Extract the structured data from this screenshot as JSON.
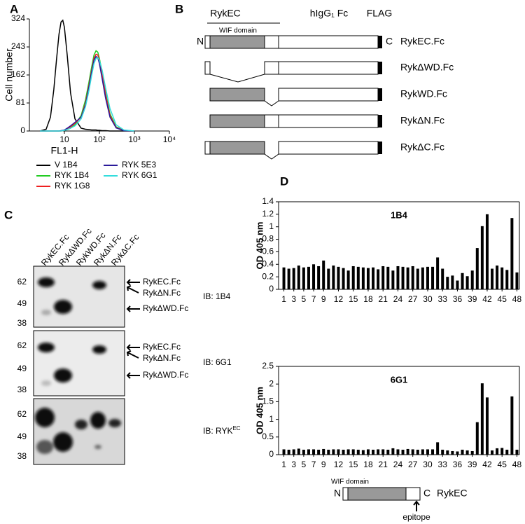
{
  "panels": [
    "A",
    "B",
    "C",
    "D"
  ],
  "chart_data": [
    {
      "type": "line",
      "ylabel": "Cell number",
      "xlabel": "FL1-H",
      "xscale": "log",
      "xlim": [
        1,
        10000
      ],
      "xticks": [
        10,
        {
          "value": 100,
          "label": "10²"
        },
        {
          "value": 1000,
          "label": "10³"
        },
        {
          "value": 10000,
          "label": "10⁴"
        }
      ],
      "ylim": [
        0,
        324
      ],
      "yticks": [
        0,
        81,
        162,
        243,
        324
      ],
      "x": [
        2,
        3,
        4,
        5,
        6,
        7,
        8,
        9,
        10,
        12,
        15,
        20,
        30,
        40,
        50,
        60,
        70,
        80,
        90,
        100,
        120,
        150,
        200,
        300,
        500,
        1000
      ],
      "series": [
        {
          "name": "V 1B4",
          "color": "#000000",
          "values": [
            0,
            5,
            40,
            120,
            210,
            280,
            315,
            320,
            300,
            220,
            110,
            35,
            8,
            5,
            4,
            3,
            3,
            3,
            2,
            2,
            1,
            1,
            0,
            0,
            0,
            0
          ]
        },
        {
          "name": "RYK 1B4",
          "color": "#22cc22",
          "values": [
            0,
            0,
            0,
            0,
            0,
            0,
            0,
            1,
            2,
            4,
            8,
            18,
            45,
            90,
            140,
            185,
            220,
            232,
            228,
            210,
            170,
            110,
            50,
            12,
            2,
            0
          ]
        },
        {
          "name": "RYK 1G8",
          "color": "#ee2020",
          "values": [
            0,
            0,
            0,
            0,
            0,
            0,
            0,
            1,
            2,
            5,
            12,
            22,
            40,
            80,
            130,
            175,
            210,
            222,
            220,
            205,
            165,
            105,
            45,
            10,
            2,
            0
          ]
        },
        {
          "name": "RYK 5E3",
          "color": "#2a1a9a",
          "values": [
            0,
            0,
            0,
            0,
            0,
            0,
            1,
            2,
            3,
            8,
            15,
            25,
            40,
            75,
            125,
            170,
            205,
            215,
            212,
            195,
            150,
            95,
            40,
            9,
            1,
            0
          ]
        },
        {
          "name": "RYK 6G1",
          "color": "#33dddd",
          "values": [
            0,
            0,
            0,
            0,
            0,
            0,
            0,
            1,
            2,
            4,
            8,
            15,
            35,
            70,
            115,
            160,
            195,
            210,
            212,
            205,
            175,
            125,
            65,
            18,
            3,
            0
          ]
        }
      ]
    },
    {
      "type": "bar",
      "title": "1B4",
      "ylabel": "OD 405 nm",
      "color": "#000000",
      "ylim": [
        0,
        1.4
      ],
      "yticks": [
        0,
        0.2,
        0.4,
        0.6,
        0.8,
        1,
        1.2,
        1.4
      ],
      "categories": [
        "1",
        null,
        "3",
        null,
        "5",
        null,
        "7",
        null,
        "9",
        null,
        null,
        "12",
        null,
        null,
        "15",
        null,
        null,
        "18",
        null,
        null,
        "21",
        null,
        null,
        "24",
        null,
        null,
        "27",
        null,
        null,
        "30",
        null,
        null,
        "33",
        null,
        null,
        "36",
        null,
        null,
        "39",
        null,
        null,
        "42",
        null,
        null,
        "45",
        null,
        null,
        "48"
      ],
      "values": [
        0.35,
        0.33,
        0.34,
        0.38,
        0.35,
        0.36,
        0.4,
        0.37,
        0.46,
        0.33,
        0.38,
        0.36,
        0.34,
        0.3,
        0.37,
        0.36,
        0.35,
        0.34,
        0.35,
        0.32,
        0.37,
        0.36,
        0.3,
        0.37,
        0.36,
        0.35,
        0.37,
        0.33,
        0.35,
        0.36,
        0.36,
        0.51,
        0.33,
        0.2,
        0.22,
        0.14,
        0.26,
        0.21,
        0.3,
        0.66,
        1.01,
        1.2,
        0.33,
        0.38,
        0.35,
        0.31,
        1.14,
        0.27
      ]
    },
    {
      "type": "bar",
      "title": "6G1",
      "ylabel": "OD 405 nm",
      "color": "#000000",
      "ylim": [
        0,
        2.5
      ],
      "yticks": [
        0,
        0.5,
        1,
        1.5,
        2,
        2.5
      ],
      "categories": [
        "1",
        null,
        "3",
        null,
        "5",
        null,
        "7",
        null,
        "9",
        null,
        null,
        "12",
        null,
        null,
        "15",
        null,
        null,
        "18",
        null,
        null,
        "21",
        null,
        null,
        "24",
        null,
        null,
        "27",
        null,
        null,
        "30",
        null,
        null,
        "33",
        null,
        null,
        "36",
        null,
        null,
        "39",
        null,
        null,
        "42",
        null,
        null,
        "45",
        null,
        null,
        "48"
      ],
      "values": [
        0.15,
        0.14,
        0.15,
        0.17,
        0.14,
        0.15,
        0.15,
        0.14,
        0.16,
        0.14,
        0.15,
        0.15,
        0.14,
        0.15,
        0.15,
        0.14,
        0.13,
        0.15,
        0.14,
        0.15,
        0.15,
        0.14,
        0.18,
        0.15,
        0.14,
        0.16,
        0.15,
        0.14,
        0.15,
        0.15,
        0.15,
        0.35,
        0.14,
        0.12,
        0.1,
        0.09,
        0.14,
        0.12,
        0.1,
        0.92,
        2.02,
        1.62,
        0.12,
        0.18,
        0.19,
        0.14,
        1.65,
        0.14
      ]
    }
  ],
  "diagram": {
    "rykec": "RykEC",
    "wif": "WIF domain",
    "fc": "hIgG₁ Fc",
    "flag": "FLAG",
    "n": "N",
    "c": "C",
    "constructs": [
      "RykEC.Fc",
      "RykΔWD.Fc",
      "RykWD.Fc",
      "RykΔN.Fc",
      "RykΔC.Fc"
    ]
  },
  "blot": {
    "lanes": [
      "RykEC.Fc",
      "RykΔWD.Fc",
      "RykWD.Fc",
      "RykΔN.Fc",
      "RykΔC.Fc"
    ],
    "panels": [
      {
        "markers": [
          "62",
          "49",
          "38"
        ],
        "arrows": [
          "RykEC.Fc",
          "RykΔN.Fc",
          "RykΔWD.Fc"
        ],
        "ib": "IB: 1B4"
      },
      {
        "markers": [
          "62",
          "49",
          "38"
        ],
        "arrows": [
          "RykEC.Fc",
          "RykΔN.Fc",
          "RykΔWD.Fc"
        ],
        "ib": "IB: 6G1"
      },
      {
        "markers": [
          "62",
          "49",
          "38"
        ],
        "ib": "IB: RYK",
        "ib_sup": "EC"
      }
    ]
  },
  "epitope_diagram": {
    "wif": "WIF domain",
    "n": "N",
    "c": "C",
    "name": "RykEC",
    "epitope": "epitope"
  }
}
